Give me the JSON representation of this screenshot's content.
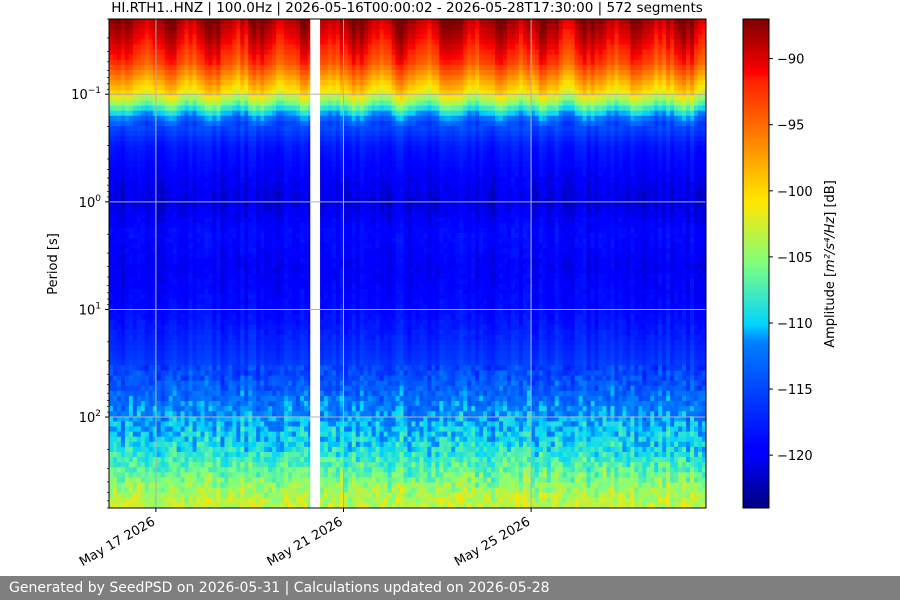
{
  "chart_data": {
    "type": "heatmap",
    "title": "HI.RTH1..HNZ | 100.0Hz | 2026-05-16T00:00:02 - 2026-05-28T17:30:00 | 572 segments",
    "ylabel": "Period [s]",
    "xlabel": "",
    "y_scale": "log",
    "y_direction": "inverted",
    "ylim_seconds": [
      0.02,
      700
    ],
    "y_ticks": [
      {
        "value": 0.1,
        "base": "10",
        "exp": "−1"
      },
      {
        "value": 1,
        "base": "10",
        "exp": "0"
      },
      {
        "value": 10,
        "base": "10",
        "exp": "1"
      },
      {
        "value": 100,
        "base": "10",
        "exp": "2"
      }
    ],
    "xlim": [
      "2026-05-16T00:00:02",
      "2026-05-28T17:30:00"
    ],
    "x_ticks": [
      {
        "date": "2026-05-17",
        "label": "May 17 2026"
      },
      {
        "date": "2026-05-21",
        "label": "May 21 2026"
      },
      {
        "date": "2026-05-25",
        "label": "May 25 2026"
      }
    ],
    "grid": true,
    "data_gaps": [
      {
        "start": "2026-05-20T07:00:00",
        "end": "2026-05-20T12:00:00"
      }
    ],
    "colormap": "jet",
    "colorbar": {
      "label_prefix": "Amplitude [",
      "label_math": "m²/s⁴/Hz",
      "label_suffix": "] [dB]",
      "range": [
        -124,
        -87
      ],
      "ticks": [
        {
          "value": -90,
          "label": "−90"
        },
        {
          "value": -95,
          "label": "−95"
        },
        {
          "value": -100,
          "label": "−100"
        },
        {
          "value": -105,
          "label": "−105"
        },
        {
          "value": -110,
          "label": "−110"
        },
        {
          "value": -115,
          "label": "−115"
        },
        {
          "value": -120,
          "label": "−120"
        }
      ]
    },
    "psd_profile_by_period": [
      {
        "period": 0.02,
        "db": -88
      },
      {
        "period": 0.03,
        "db": -90
      },
      {
        "period": 0.05,
        "db": -93
      },
      {
        "period": 0.1,
        "db": -101
      },
      {
        "period": 0.13,
        "db": -107
      },
      {
        "period": 0.18,
        "db": -114
      },
      {
        "period": 0.3,
        "db": -118
      },
      {
        "period": 0.6,
        "db": -120
      },
      {
        "period": 1,
        "db": -121
      },
      {
        "period": 2,
        "db": -119
      },
      {
        "period": 4,
        "db": -120
      },
      {
        "period": 10,
        "db": -119
      },
      {
        "period": 30,
        "db": -116
      },
      {
        "period": 100,
        "db": -111
      },
      {
        "period": 200,
        "db": -109
      },
      {
        "period": 500,
        "db": -104
      },
      {
        "period": 700,
        "db": -103
      }
    ]
  },
  "footer": {
    "text": "Generated by SeedPSD on 2026-05-31 | Calculations updated on 2026-05-28"
  }
}
